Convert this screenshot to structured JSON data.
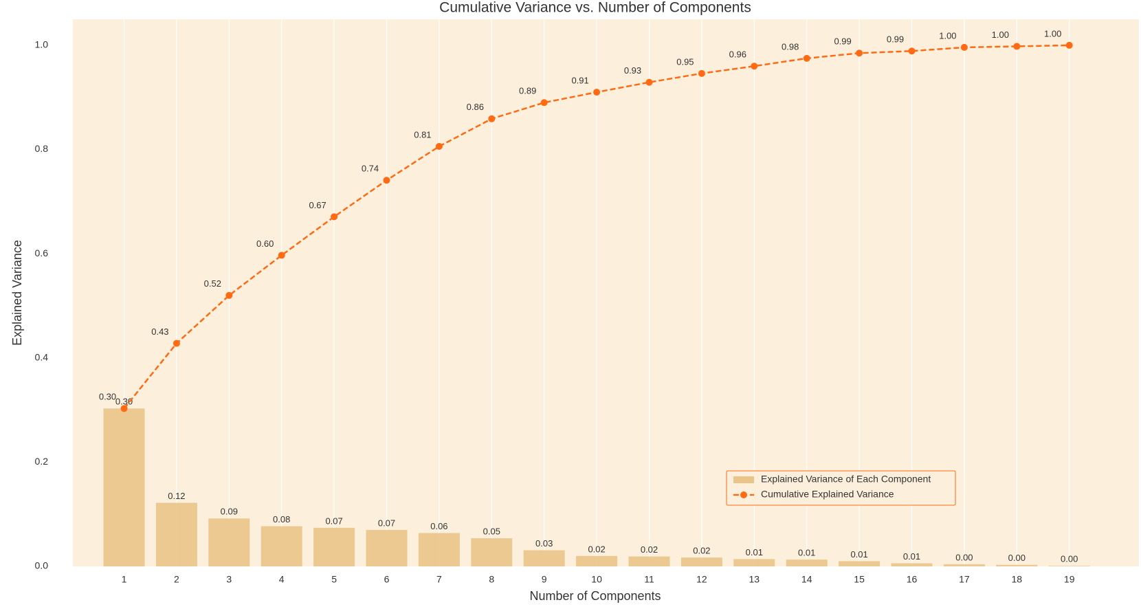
{
  "chart_data": {
    "type": "combo",
    "title": "Cumulative Variance vs. Number of Components",
    "x_label": "Number of Components",
    "y_label": "Explained Variance",
    "categories": [
      "1",
      "2",
      "3",
      "4",
      "5",
      "6",
      "7",
      "8",
      "9",
      "10",
      "11",
      "12",
      "13",
      "14",
      "15",
      "16",
      "17",
      "18",
      "19"
    ],
    "ylim": [
      0,
      1.05
    ],
    "yticks": [
      {
        "value": 0,
        "label": "0.0"
      },
      0.2,
      0.4,
      0.6,
      0.8,
      {
        "value": 1,
        "label": "1.0"
      }
    ],
    "grid": "x",
    "legend": "lower right",
    "series": [
      {
        "name": "Explained Variance of Each Component",
        "type": "bar",
        "color": "#ebc48a",
        "values": [
          0.303,
          0.122,
          0.092,
          0.077,
          0.074,
          0.07,
          0.064,
          0.054,
          0.031,
          0.02,
          0.019,
          0.017,
          0.014,
          0.013,
          0.01,
          0.006,
          0.004,
          0.003,
          0.001
        ],
        "value_labels": [
          "0.30",
          "0.12",
          "0.09",
          "0.08",
          "0.07",
          "0.07",
          "0.06",
          "0.05",
          "0.03",
          "0.02",
          "0.02",
          "0.02",
          "0.01",
          "0.01",
          "0.01",
          "0.01",
          "0.00",
          "0.00",
          "0.00"
        ]
      },
      {
        "name": "Cumulative Explained Variance",
        "type": "line",
        "color": "#ff6a13",
        "values": [
          0.303,
          0.428,
          0.52,
          0.597,
          0.671,
          0.741,
          0.806,
          0.859,
          0.89,
          0.91,
          0.929,
          0.946,
          0.96,
          0.975,
          0.985,
          0.989,
          0.996,
          0.998,
          1.0
        ],
        "value_labels": [
          "0.30",
          "0.43",
          "0.52",
          "0.60",
          "0.67",
          "0.74",
          "0.81",
          "0.86",
          "0.89",
          "0.91",
          "0.93",
          "0.95",
          "0.96",
          "0.98",
          "0.99",
          "0.99",
          "1.00",
          "1.00",
          "1.00"
        ]
      }
    ]
  }
}
